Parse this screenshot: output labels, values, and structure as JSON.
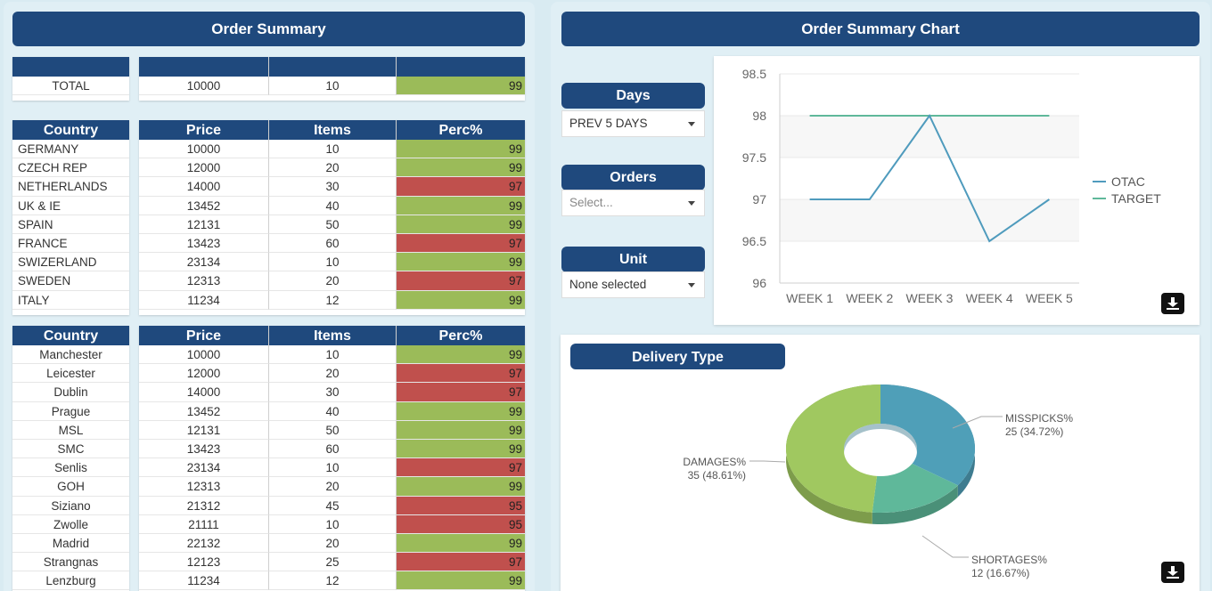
{
  "left": {
    "title": "Order Summary",
    "total": {
      "label": "TOTAL",
      "price": "10000",
      "items": "10",
      "perc": "99",
      "status": "good"
    },
    "table1": {
      "headers": {
        "country": "Country",
        "price": "Price",
        "items": "Items",
        "perc": "Perc%"
      },
      "rows": [
        {
          "name": "GERMANY",
          "price": "10000",
          "items": "10",
          "perc": "99",
          "status": "good"
        },
        {
          "name": "CZECH REP",
          "price": "12000",
          "items": "20",
          "perc": "99",
          "status": "good"
        },
        {
          "name": "NETHERLANDS",
          "price": "14000",
          "items": "30",
          "perc": "97",
          "status": "bad"
        },
        {
          "name": "UK & IE",
          "price": "13452",
          "items": "40",
          "perc": "99",
          "status": "good"
        },
        {
          "name": "SPAIN",
          "price": "12131",
          "items": "50",
          "perc": "99",
          "status": "good"
        },
        {
          "name": "FRANCE",
          "price": "13423",
          "items": "60",
          "perc": "97",
          "status": "bad"
        },
        {
          "name": "SWIZERLAND",
          "price": "23134",
          "items": "10",
          "perc": "99",
          "status": "good"
        },
        {
          "name": "SWEDEN",
          "price": "12313",
          "items": "20",
          "perc": "97",
          "status": "bad"
        },
        {
          "name": "ITALY",
          "price": "11234",
          "items": "12",
          "perc": "99",
          "status": "good"
        }
      ]
    },
    "table2": {
      "headers": {
        "country": "Country",
        "price": "Price",
        "items": "Items",
        "perc": "Perc%"
      },
      "rows": [
        {
          "name": "Manchester",
          "price": "10000",
          "items": "10",
          "perc": "99",
          "status": "good"
        },
        {
          "name": "Leicester",
          "price": "12000",
          "items": "20",
          "perc": "97",
          "status": "bad"
        },
        {
          "name": "Dublin",
          "price": "14000",
          "items": "30",
          "perc": "97",
          "status": "bad"
        },
        {
          "name": "Prague",
          "price": "13452",
          "items": "40",
          "perc": "99",
          "status": "good"
        },
        {
          "name": "MSL",
          "price": "12131",
          "items": "50",
          "perc": "99",
          "status": "good"
        },
        {
          "name": "SMC",
          "price": "13423",
          "items": "60",
          "perc": "99",
          "status": "good"
        },
        {
          "name": "Senlis",
          "price": "23134",
          "items": "10",
          "perc": "97",
          "status": "bad"
        },
        {
          "name": "GOH",
          "price": "12313",
          "items": "20",
          "perc": "99",
          "status": "good"
        },
        {
          "name": "Siziano",
          "price": "21312",
          "items": "45",
          "perc": "95",
          "status": "bad"
        },
        {
          "name": "Zwolle",
          "price": "21111",
          "items": "10",
          "perc": "95",
          "status": "bad"
        },
        {
          "name": "Madrid",
          "price": "22132",
          "items": "20",
          "perc": "99",
          "status": "good"
        },
        {
          "name": "Strangnas",
          "price": "12123",
          "items": "25",
          "perc": "97",
          "status": "bad"
        },
        {
          "name": "Lenzburg",
          "price": "11234",
          "items": "12",
          "perc": "99",
          "status": "good"
        }
      ]
    }
  },
  "right": {
    "title": "Order Summary Chart",
    "filters": {
      "days": {
        "label": "Days",
        "value": "PREV 5 DAYS"
      },
      "orders": {
        "label": "Orders",
        "placeholder": "Select..."
      },
      "unit": {
        "label": "Unit",
        "value": "None selected"
      }
    },
    "delivery_title": "Delivery Type"
  },
  "colors": {
    "header": "#1f497d",
    "good": "#9bbb59",
    "bad": "#c0504d",
    "otac": "#4f9bbd",
    "target": "#5fb89a"
  },
  "icons": [
    "download-icon",
    "caret-down-icon"
  ],
  "chart_data": [
    {
      "type": "line",
      "categories": [
        "WEEK 1",
        "WEEK 2",
        "WEEK 3",
        "WEEK 4",
        "WEEK 5"
      ],
      "series": [
        {
          "name": "OTAC",
          "values": [
            97,
            97,
            98,
            96.5,
            97
          ],
          "color": "#4f9bbd"
        },
        {
          "name": "TARGET",
          "values": [
            98,
            98,
            98,
            98,
            98
          ],
          "color": "#5fb89a"
        }
      ],
      "yticks": [
        "96",
        "96.5",
        "97",
        "97.5",
        "98",
        "98.5"
      ],
      "ylim": [
        96,
        98.5
      ],
      "legend": "right",
      "grid": true
    },
    {
      "type": "pie",
      "style": "3d-donut",
      "slices": [
        {
          "label": "MISSPICKS%",
          "value": 25,
          "pct": "25 (34.72%)",
          "color": "#4f9fb8"
        },
        {
          "label": "SHORTAGES%",
          "value": 12,
          "pct": "12 (16.67%)",
          "color": "#5fb89a"
        },
        {
          "label": "DAMAGES%",
          "value": 35,
          "pct": "35 (48.61%)",
          "color": "#a0c860"
        }
      ]
    }
  ]
}
